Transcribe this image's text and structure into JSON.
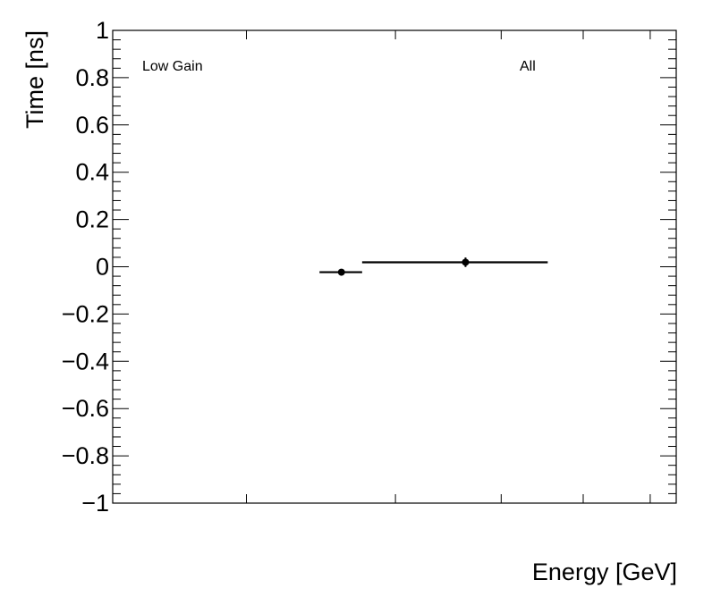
{
  "chart_data": {
    "type": "scatter",
    "title": "",
    "xlabel": "Energy [GeV]",
    "ylabel": "Time [ns]",
    "x_scale": "log",
    "xlim": [
      1.39,
      6.44
    ],
    "x_ticks": [
      2,
      3,
      4,
      5,
      6
    ],
    "x_tick_labels_shown": false,
    "ylim": [
      -1,
      1
    ],
    "y_ticks": [
      -1,
      -0.8,
      -0.6,
      -0.4,
      -0.2,
      0,
      0.2,
      0.4,
      0.6,
      0.8,
      1
    ],
    "y_tick_labels": [
      "−1",
      "−0.8",
      "−0.6",
      "−0.4",
      "−0.2",
      "0",
      "0.2",
      "0.4",
      "0.6",
      "0.8",
      "1"
    ],
    "grid": false,
    "annotations": [
      "Low Gain",
      "All"
    ],
    "series": [
      {
        "name": "All",
        "color": "#000000",
        "points": [
          {
            "x": 2.59,
            "xlow": 2.44,
            "xhigh": 2.74,
            "y": -0.023,
            "yerr": 0.005
          },
          {
            "x": 3.63,
            "xlow": 2.74,
            "xhigh": 4.54,
            "y": 0.019,
            "yerr": 0.02
          }
        ]
      }
    ]
  }
}
